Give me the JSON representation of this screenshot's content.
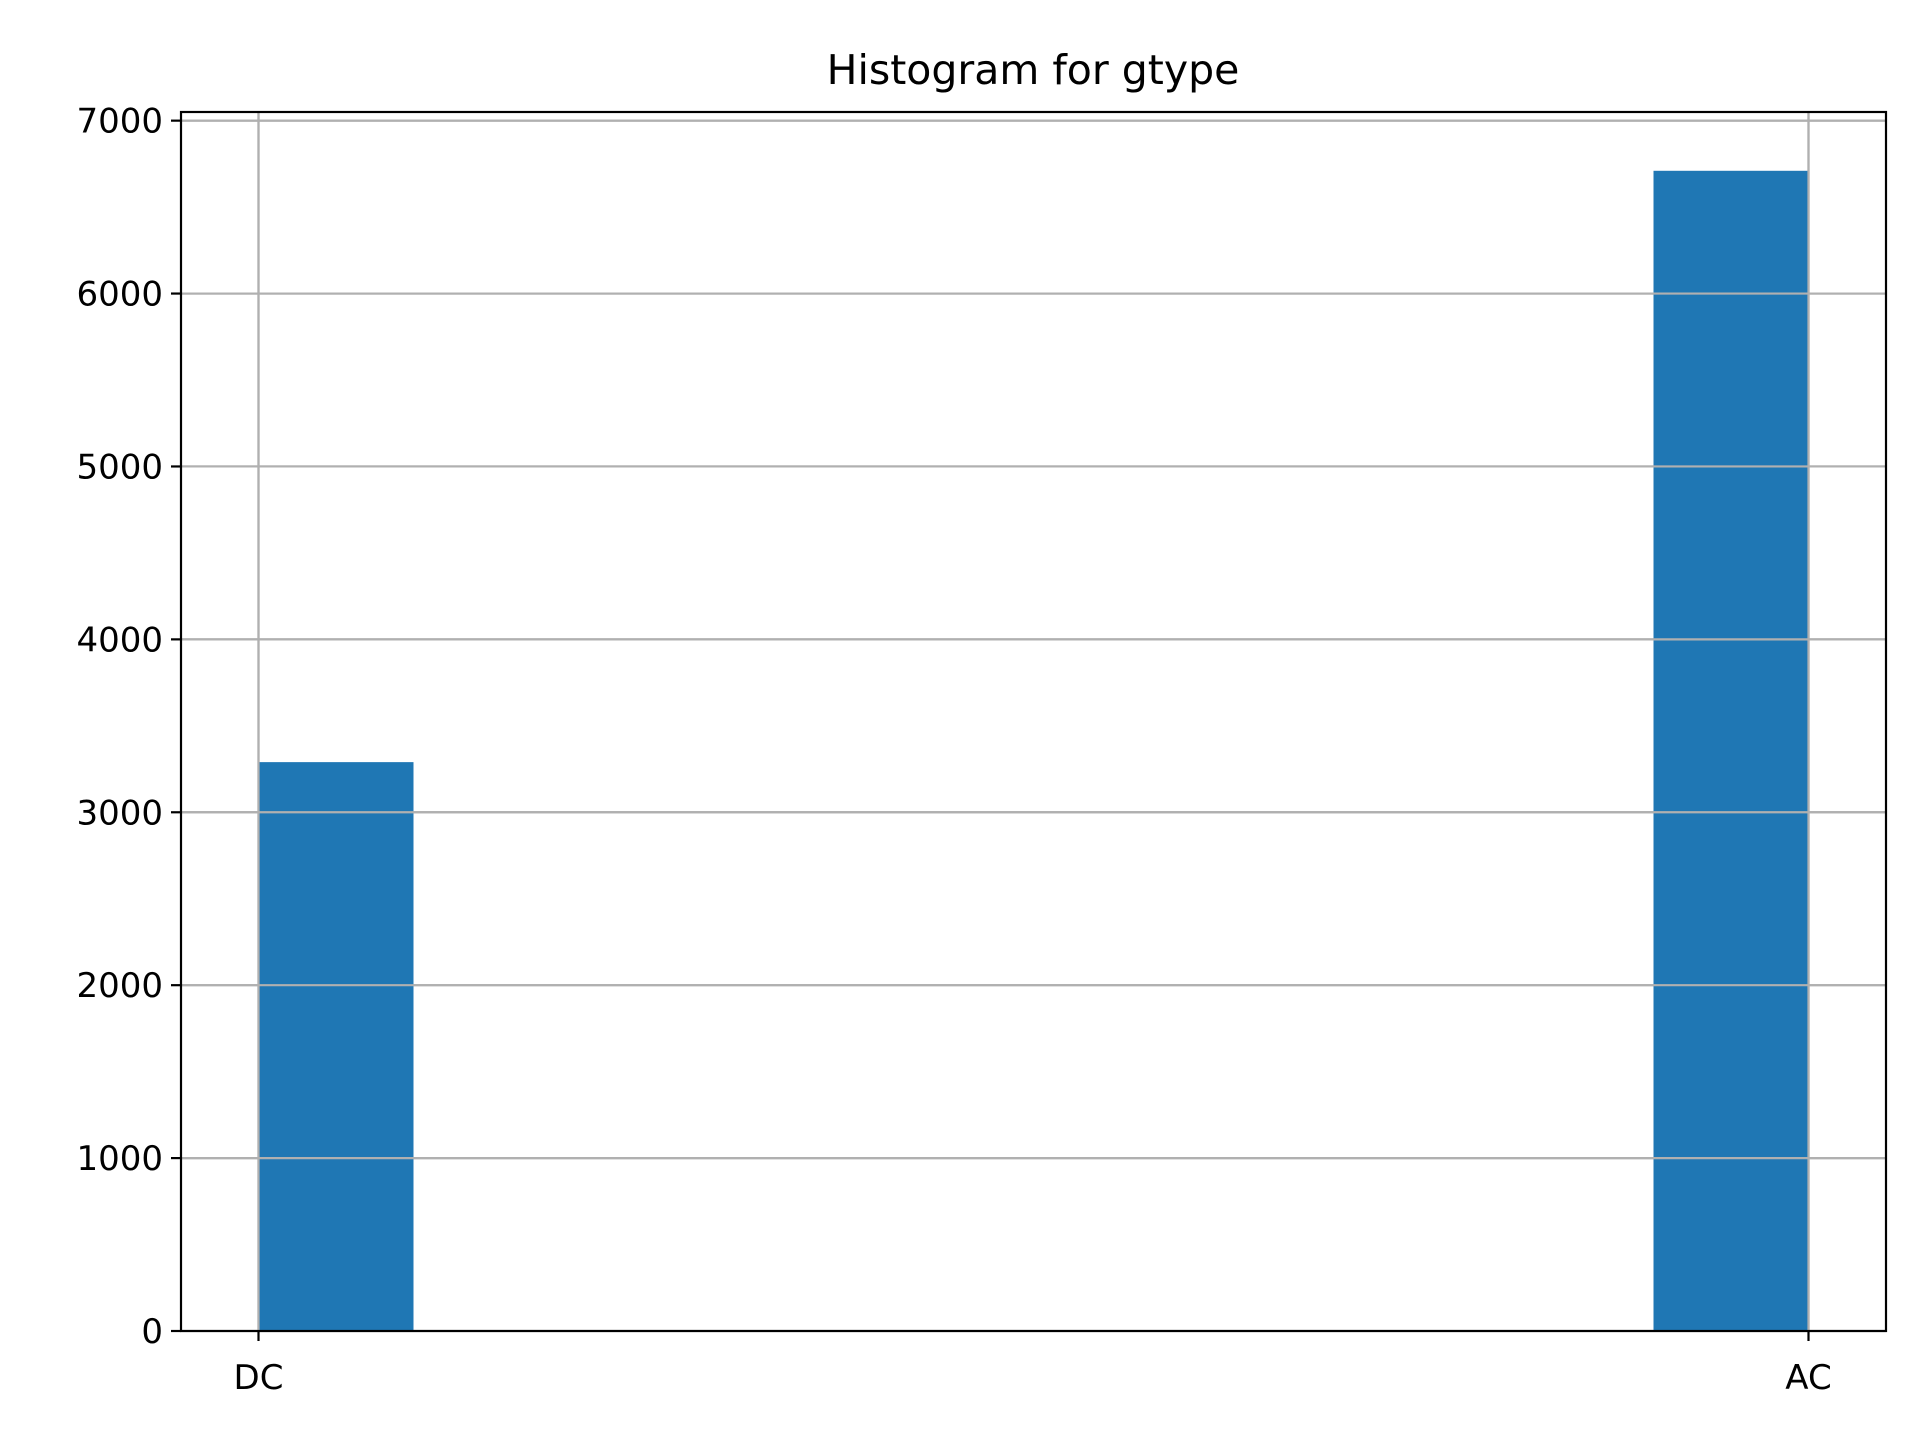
{
  "chart_data": {
    "type": "bar",
    "title": "Histogram for gtype",
    "xlabel": "",
    "ylabel": "",
    "categories": [
      "DC",
      "AC"
    ],
    "series": [
      {
        "bins": [
          {
            "x0": 0.0,
            "x1": 0.1,
            "count": 3290
          },
          {
            "x0": 0.9,
            "x1": 1.0,
            "count": 6710
          }
        ]
      }
    ],
    "xlim": [
      -0.05,
      1.05
    ],
    "ylim": [
      0,
      7050
    ],
    "yticks": [
      0,
      1000,
      2000,
      3000,
      4000,
      5000,
      6000,
      7000
    ],
    "xticks": [
      {
        "value": 0,
        "label": "DC"
      },
      {
        "value": 1,
        "label": "AC"
      }
    ],
    "grid": true,
    "colors": {
      "bar": "#1f77b4",
      "grid": "#b0b0b0",
      "axis": "#000000"
    }
  }
}
